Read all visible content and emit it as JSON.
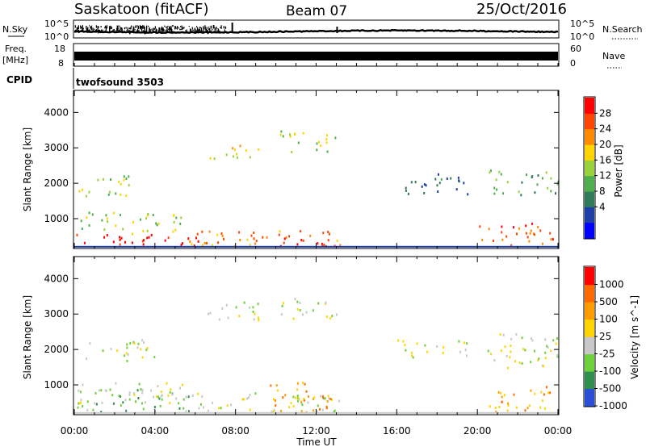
{
  "header": {
    "site": "Saskatoon (fitACF)",
    "beam": "Beam 07",
    "date": "25/Oct/2016"
  },
  "strip": {
    "nsky_label": "N.Sky",
    "nsky_ticks": [
      "10^5",
      "10^0"
    ],
    "nsearch_label": "N.Search",
    "freq_label": "Freq.",
    "freq_unit": "[MHz]",
    "freq_ticks": [
      "18",
      "8"
    ],
    "nave_ticks": [
      "60",
      "0"
    ],
    "nave_label": "Nave",
    "cpid_label": "CPID",
    "cpid_value": "twofsound 3503"
  },
  "chart_data": [
    {
      "type": "heatmap",
      "panel": "power",
      "ylabel": "Slant Range [km]",
      "yticks": [
        1000,
        2000,
        3000,
        4000
      ],
      "ylim": [
        180,
        4600
      ],
      "xlim": [
        0,
        24
      ],
      "colorbar": {
        "label": "Power [dB]",
        "ticks": [
          "28",
          "24",
          "20",
          "16",
          "12",
          "8",
          "4"
        ],
        "colors": [
          "#0000ff",
          "#1f3fa8",
          "#2e7a5a",
          "#4faf4f",
          "#9ad23a",
          "#ffd400",
          "#ff8c00",
          "#ff4500",
          "#ff0000"
        ]
      },
      "regions": [
        {
          "t0": 0.1,
          "t1": 6.5,
          "r0": 250,
          "r1": 600,
          "level": 8
        },
        {
          "t0": 0.3,
          "t1": 5.5,
          "r0": 600,
          "r1": 1200,
          "level": 4
        },
        {
          "t0": 5.5,
          "t1": 13.2,
          "r0": 250,
          "r1": 700,
          "level": 6
        },
        {
          "t0": 8.5,
          "t1": 12.8,
          "r0": 250,
          "r1": 500,
          "level": 8
        },
        {
          "t0": 0.0,
          "t1": 2.8,
          "r0": 1650,
          "r1": 2250,
          "level": 4
        },
        {
          "t0": 6.6,
          "t1": 9.2,
          "r0": 2700,
          "r1": 3100,
          "level": 5
        },
        {
          "t0": 10.2,
          "t1": 13.0,
          "r0": 2900,
          "r1": 3500,
          "level": 4
        },
        {
          "t0": 16.0,
          "t1": 19.5,
          "r0": 1700,
          "r1": 2300,
          "level": 2
        },
        {
          "t0": 20.0,
          "t1": 23.8,
          "r0": 250,
          "r1": 900,
          "level": 7
        },
        {
          "t0": 20.5,
          "t1": 24.0,
          "r0": 1700,
          "r1": 2400,
          "level": 3
        }
      ]
    },
    {
      "type": "heatmap",
      "panel": "velocity",
      "ylabel": "Slant Range [km]",
      "yticks": [
        1000,
        2000,
        3000,
        4000
      ],
      "ylim": [
        180,
        4600
      ],
      "xlim": [
        0,
        24
      ],
      "xlabel": "Time UT",
      "xticks": [
        "00:00",
        "04:00",
        "08:00",
        "12:00",
        "16:00",
        "20:00",
        "00:00"
      ],
      "colorbar": {
        "label": "Velocity [m s^-1]",
        "ticks": [
          "1000",
          "500",
          "100",
          "25",
          "-25",
          "-100",
          "-500",
          "-1000"
        ],
        "colors": [
          "#2a4fd6",
          "#2f8f4f",
          "#6cd23a",
          "#c8c8c8",
          "#ffd400",
          "#ff9c00",
          "#ff6a00",
          "#ff0000"
        ]
      },
      "regions": [
        {
          "t0": 0.1,
          "t1": 6.0,
          "r0": 250,
          "r1": 900,
          "level": 2
        },
        {
          "t0": 0.2,
          "t1": 5.5,
          "r0": 500,
          "r1": 1100,
          "level": 3
        },
        {
          "t0": 6.0,
          "t1": 13.2,
          "r0": 250,
          "r1": 800,
          "level": 3
        },
        {
          "t0": 9.5,
          "t1": 13.0,
          "r0": 250,
          "r1": 1100,
          "level": 5
        },
        {
          "t0": 0.5,
          "t1": 4.0,
          "r0": 1700,
          "r1": 2300,
          "level": 3
        },
        {
          "t0": 6.6,
          "t1": 9.2,
          "r0": 2800,
          "r1": 3400,
          "level": 3
        },
        {
          "t0": 10.2,
          "t1": 13.0,
          "r0": 2900,
          "r1": 3500,
          "level": 3
        },
        {
          "t0": 16.0,
          "t1": 19.5,
          "r0": 1800,
          "r1": 2300,
          "level": 3
        },
        {
          "t0": 20.5,
          "t1": 23.8,
          "r0": 250,
          "r1": 1000,
          "level": 5
        },
        {
          "t0": 20.5,
          "t1": 24.0,
          "r0": 1500,
          "r1": 2500,
          "level": 3
        }
      ]
    }
  ]
}
